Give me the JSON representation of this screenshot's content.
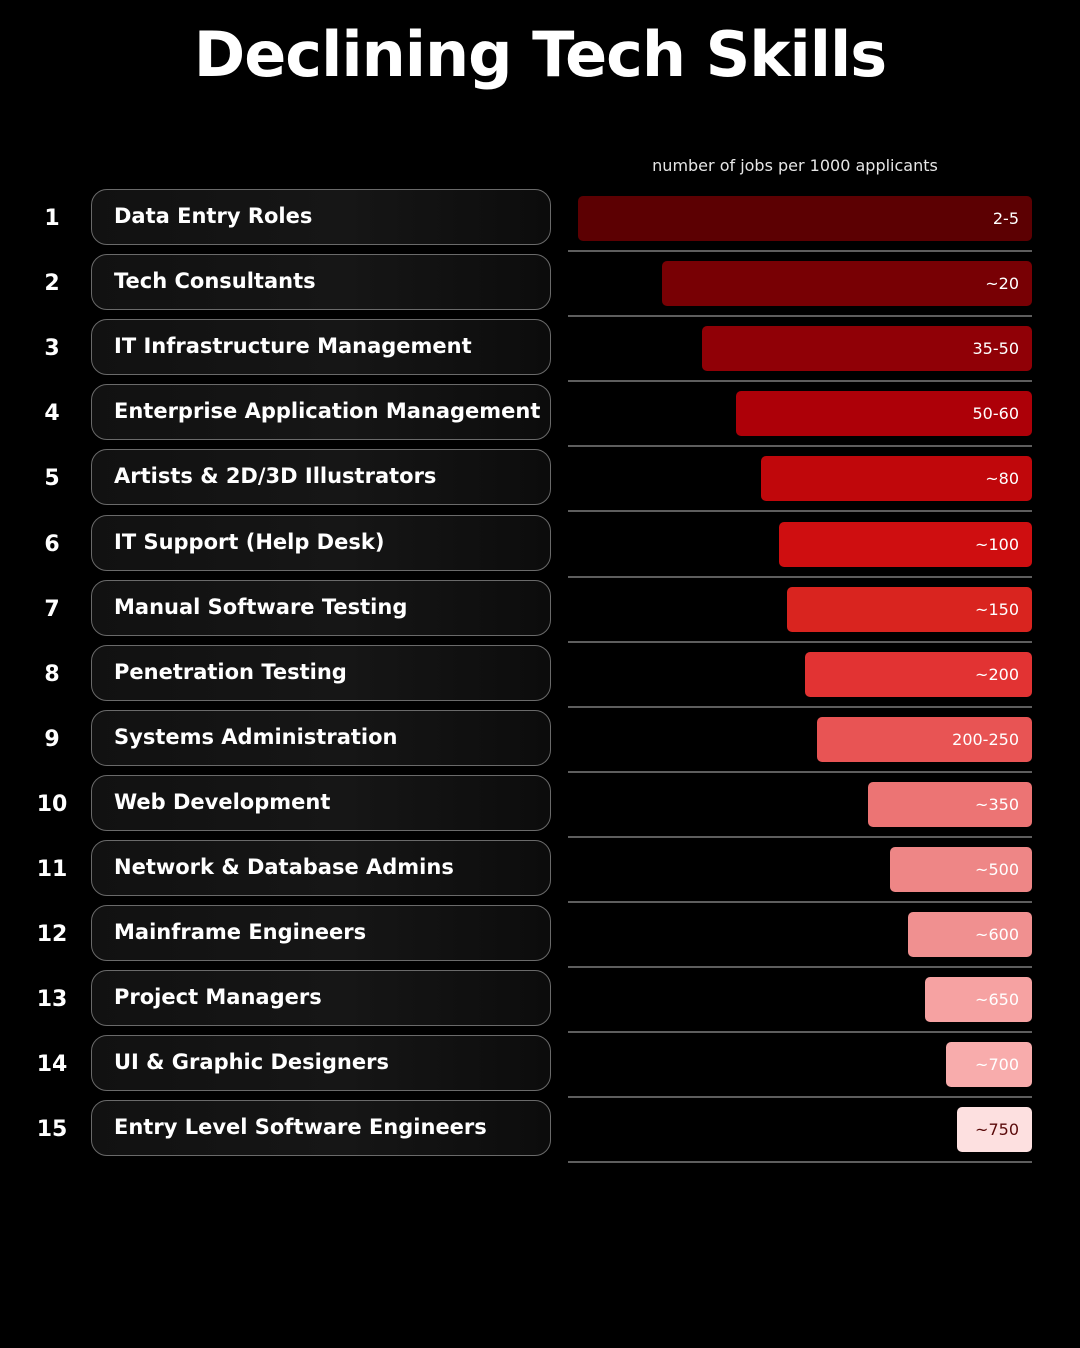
{
  "title": "Declining Tech Skills",
  "chart_data": {
    "type": "bar",
    "orientation": "horizontal",
    "title": "Declining Tech Skills",
    "xlabel": "number of jobs per 1000 applicants",
    "ylabel": "",
    "xlim": [
      0,
      800
    ],
    "categories": [
      "Data Entry Roles",
      "Tech Consultants",
      "IT Infrastructure Management",
      "Enterprise Application Management",
      "Artists & 2D/3D Illustrators",
      "IT Support (Help Desk)",
      "Manual Software Testing",
      "Penetration Testing",
      "Systems Administration",
      "Web Development",
      "Network & Database Admins",
      "Mainframe Engineers",
      "Project Managers",
      "UI & Graphic Designers",
      "Entry Level Software Engineers"
    ],
    "ranks": [
      "1",
      "2",
      "3",
      "4",
      "5",
      "6",
      "7",
      "8",
      "9",
      "10",
      "11",
      "12",
      "13",
      "14",
      "15"
    ],
    "values": [
      3.5,
      20,
      42.5,
      55,
      80,
      100,
      150,
      200,
      225,
      350,
      500,
      600,
      650,
      700,
      750
    ],
    "value_labels": [
      "2-5",
      "~20",
      "35-50",
      "50-60",
      "~80",
      "~100",
      "~150",
      "~200",
      "200-250",
      "~350",
      "~500",
      "~600",
      "~650",
      "~700",
      "~750"
    ],
    "bar_fill_fraction": [
      1.0,
      0.815,
      0.726,
      0.652,
      0.597,
      0.557,
      0.539,
      0.499,
      0.474,
      0.361,
      0.312,
      0.274,
      0.236,
      0.189,
      0.165
    ],
    "colors": [
      "#5c0002",
      "#780004",
      "#900006",
      "#ad0008",
      "#c0070b",
      "#cf0e10",
      "#d9241f",
      "#e23333",
      "#e85454",
      "#ec7474",
      "#ee8686",
      "#f09090",
      "#f6a2a2",
      "#f8acac",
      "#fde0e0"
    ],
    "bar_text_light": [
      false,
      false,
      false,
      false,
      false,
      false,
      false,
      false,
      false,
      false,
      false,
      false,
      false,
      false,
      true
    ]
  }
}
